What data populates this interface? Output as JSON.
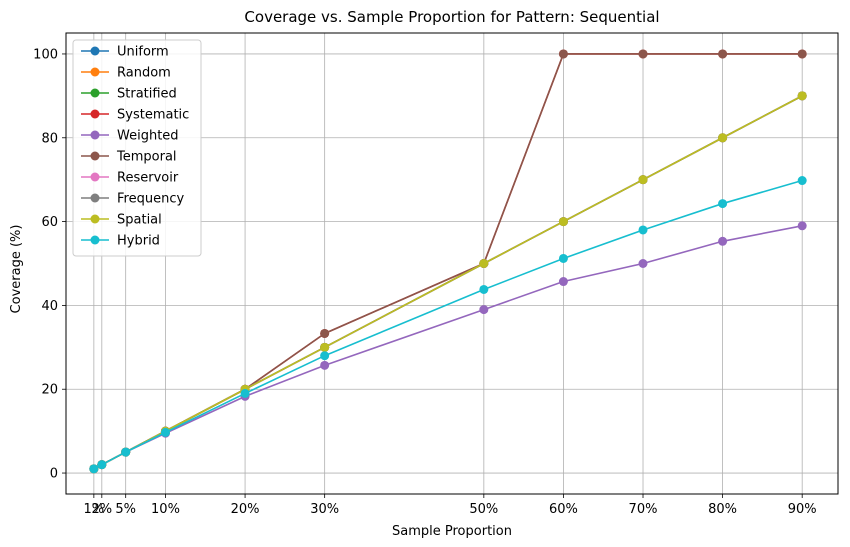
{
  "chart_data": {
    "type": "line",
    "title": "Coverage vs. Sample Proportion for Pattern: Sequential",
    "xlabel": "Sample Proportion",
    "ylabel": "Coverage (%)",
    "x": [
      1,
      2,
      5,
      10,
      20,
      30,
      50,
      60,
      70,
      80,
      90
    ],
    "x_tick_labels": [
      "1%",
      "2%",
      "5%",
      "10%",
      "20%",
      "30%",
      "50%",
      "60%",
      "70%",
      "80%",
      "90%"
    ],
    "xlim": [
      -2.5,
      94.5
    ],
    "ylim": [
      -5,
      105
    ],
    "y_ticks": [
      0,
      20,
      40,
      60,
      80,
      100
    ],
    "grid": true,
    "legend_position": "top-left",
    "series": [
      {
        "name": "Uniform",
        "color": "#1f77b4",
        "values": [
          1,
          2,
          5,
          10,
          20,
          30,
          50,
          60,
          70,
          80,
          90
        ]
      },
      {
        "name": "Random",
        "color": "#ff7f0e",
        "values": [
          1,
          2,
          5,
          10,
          20,
          30,
          50,
          60,
          70,
          80,
          90
        ]
      },
      {
        "name": "Stratified",
        "color": "#2ca02c",
        "values": [
          1,
          2,
          5,
          10,
          20,
          30,
          50,
          60,
          70,
          80,
          90
        ]
      },
      {
        "name": "Systematic",
        "color": "#d62728",
        "values": [
          1,
          2,
          5,
          10,
          20,
          33.3,
          50,
          100,
          100,
          100,
          100
        ]
      },
      {
        "name": "Weighted",
        "color": "#9467bd",
        "values": [
          1,
          2,
          5,
          9.5,
          18.3,
          25.7,
          39,
          45.7,
          50,
          55.3,
          59
        ]
      },
      {
        "name": "Temporal",
        "color": "#8c564b",
        "values": [
          1,
          2,
          5,
          10,
          20,
          33.3,
          50,
          100,
          100,
          100,
          100
        ]
      },
      {
        "name": "Reservoir",
        "color": "#e377c2",
        "values": [
          1,
          2,
          5,
          10,
          20,
          30,
          50,
          60,
          70,
          80,
          90
        ]
      },
      {
        "name": "Frequency",
        "color": "#7f7f7f",
        "values": [
          1,
          2,
          5,
          10,
          20,
          30,
          50,
          60,
          70,
          80,
          90
        ]
      },
      {
        "name": "Spatial",
        "color": "#bcbd22",
        "values": [
          1,
          2,
          5,
          10,
          20,
          30,
          50,
          60,
          70,
          80,
          90
        ]
      },
      {
        "name": "Hybrid",
        "color": "#17becf",
        "values": [
          1,
          2,
          5,
          9.7,
          19,
          28,
          43.8,
          51.2,
          58,
          64.3,
          69.8
        ]
      }
    ]
  }
}
